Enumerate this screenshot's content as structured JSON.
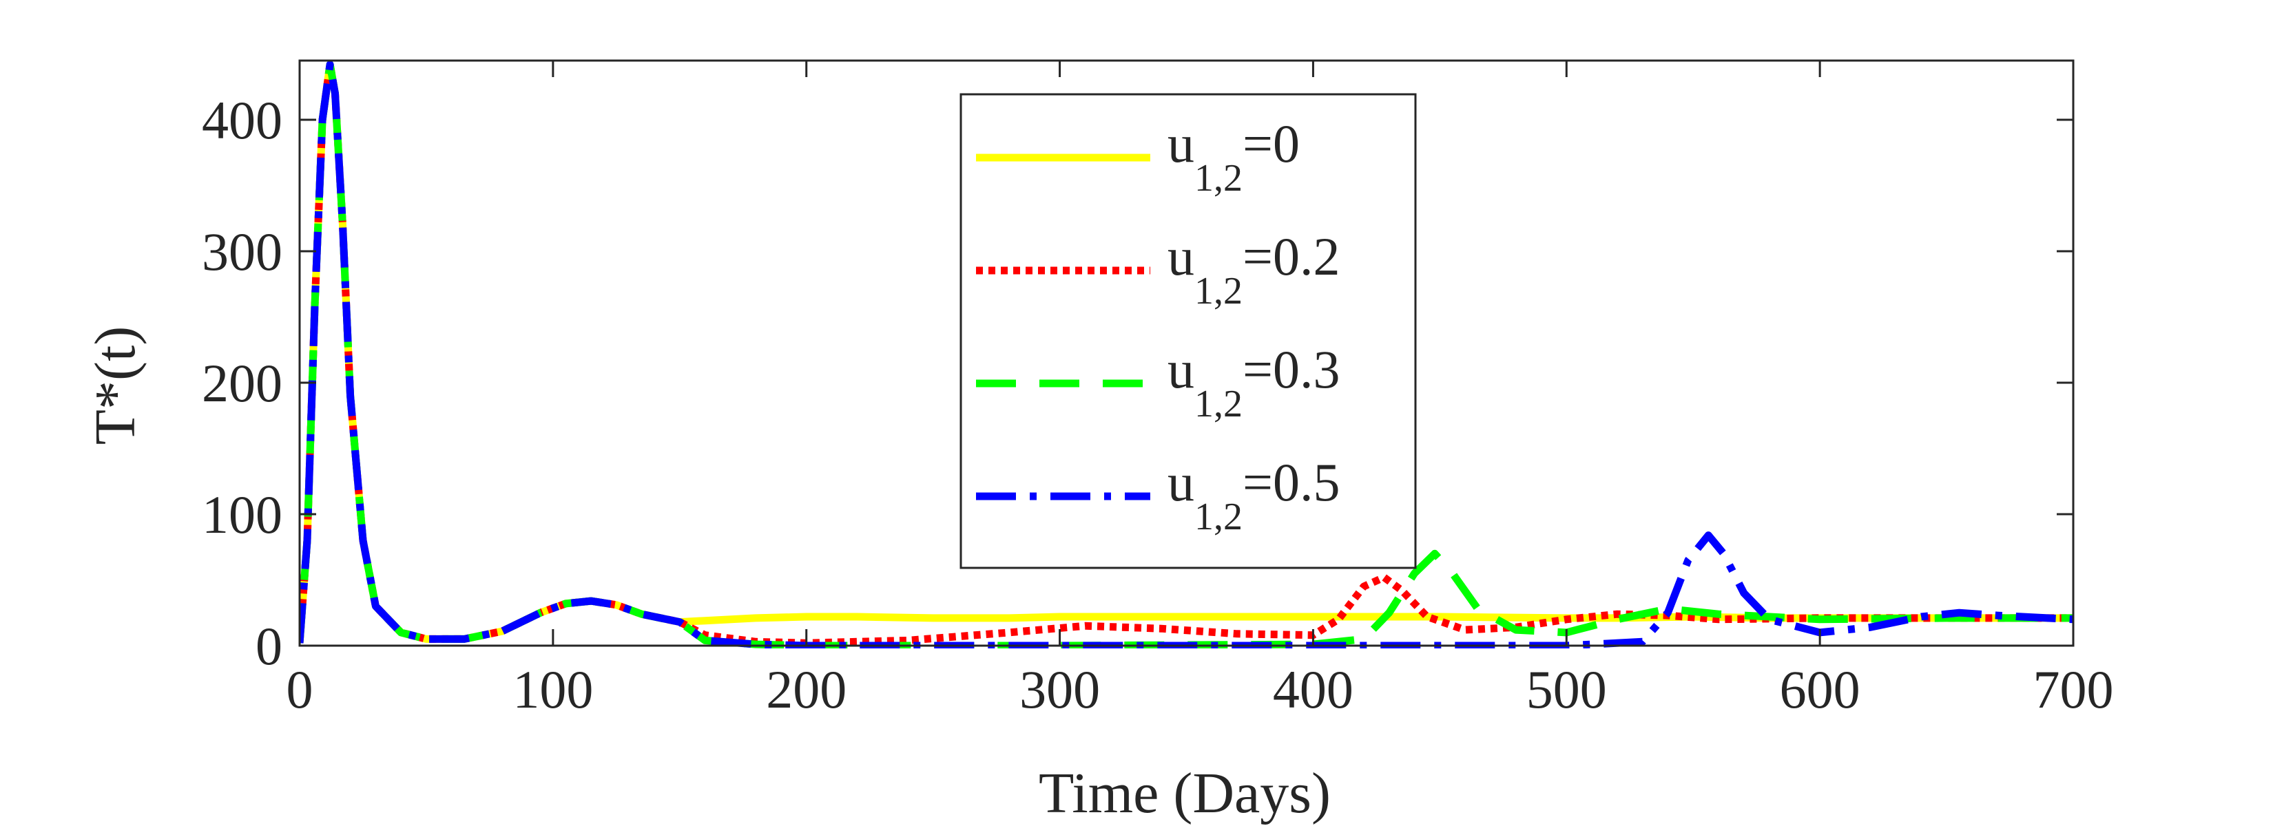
{
  "chart_data": {
    "type": "line",
    "title": "",
    "xlabel": "Time (Days)",
    "ylabel": "T*(t)",
    "xlim": [
      0,
      700
    ],
    "ylim": [
      0,
      445
    ],
    "xticks": [
      0,
      100,
      200,
      300,
      400,
      500,
      600,
      700
    ],
    "yticks": [
      0,
      100,
      200,
      300,
      400
    ],
    "grid": false,
    "legend_position": "top-center",
    "series": [
      {
        "name": "u1,2=0",
        "label_base": "u",
        "label_sub": "1,2",
        "label_value": "=0",
        "color": "#ffff00",
        "style": "solid",
        "x": [
          0,
          3,
          6,
          9,
          12,
          14,
          17,
          20,
          25,
          30,
          40,
          50,
          65,
          80,
          95,
          105,
          115,
          125,
          135,
          150,
          160,
          180,
          200,
          220,
          250,
          280,
          300,
          350,
          400,
          450,
          500,
          520,
          550,
          580,
          600,
          620,
          650,
          680,
          700
        ],
        "y": [
          2,
          80,
          260,
          400,
          442,
          420,
          320,
          190,
          80,
          30,
          10,
          5,
          5,
          11,
          25,
          32,
          34,
          31,
          24,
          18,
          19,
          21,
          22,
          22,
          21,
          21,
          22,
          22,
          22,
          22,
          21,
          21,
          22,
          21,
          21,
          21,
          21,
          21,
          21
        ]
      },
      {
        "name": "u1,2=0.2",
        "label_base": "u",
        "label_sub": "1,2",
        "label_value": "=0.2",
        "color": "#ff0000",
        "style": "dotted",
        "x": [
          0,
          3,
          6,
          9,
          12,
          14,
          17,
          20,
          25,
          30,
          40,
          50,
          65,
          80,
          95,
          105,
          115,
          125,
          135,
          150,
          160,
          180,
          200,
          240,
          280,
          310,
          340,
          370,
          400,
          410,
          420,
          428,
          435,
          445,
          460,
          480,
          500,
          520,
          540,
          560,
          600,
          650,
          700
        ],
        "y": [
          2,
          80,
          260,
          400,
          442,
          420,
          320,
          190,
          80,
          30,
          10,
          5,
          5,
          11,
          25,
          32,
          34,
          31,
          24,
          18,
          8,
          3,
          2,
          4,
          10,
          15,
          13,
          9,
          8,
          20,
          45,
          52,
          42,
          22,
          12,
          14,
          20,
          24,
          23,
          20,
          21,
          21,
          21
        ]
      },
      {
        "name": "u1,2=0.3",
        "label_base": "u",
        "label_sub": "1,2",
        "label_value": "=0.3",
        "color": "#00ff00",
        "style": "dashed",
        "x": [
          0,
          3,
          6,
          9,
          12,
          14,
          17,
          20,
          25,
          30,
          40,
          50,
          65,
          80,
          95,
          105,
          115,
          125,
          135,
          150,
          160,
          180,
          200,
          300,
          400,
          420,
          430,
          440,
          448,
          455,
          465,
          480,
          500,
          520,
          540,
          560,
          600,
          650,
          700
        ],
        "y": [
          2,
          80,
          260,
          400,
          442,
          420,
          320,
          190,
          80,
          30,
          10,
          5,
          5,
          11,
          25,
          32,
          34,
          31,
          24,
          18,
          4,
          1,
          0,
          0,
          1,
          5,
          25,
          55,
          70,
          55,
          28,
          12,
          10,
          20,
          28,
          24,
          20,
          21,
          21
        ]
      },
      {
        "name": "u1,2=0.5",
        "label_base": "u",
        "label_sub": "1,2",
        "label_value": "=0.5",
        "color": "#0000ff",
        "style": "dashdot",
        "x": [
          0,
          3,
          6,
          9,
          12,
          14,
          17,
          20,
          25,
          30,
          40,
          50,
          65,
          80,
          95,
          105,
          115,
          125,
          135,
          150,
          160,
          180,
          200,
          300,
          400,
          500,
          530,
          540,
          548,
          556,
          562,
          570,
          580,
          600,
          620,
          640,
          655,
          670,
          700
        ],
        "y": [
          2,
          80,
          260,
          400,
          442,
          420,
          320,
          190,
          80,
          30,
          10,
          5,
          5,
          11,
          25,
          32,
          34,
          31,
          24,
          18,
          4,
          1,
          0,
          0,
          0,
          0,
          3,
          25,
          65,
          84,
          70,
          40,
          20,
          10,
          14,
          22,
          25,
          23,
          20
        ]
      }
    ]
  }
}
